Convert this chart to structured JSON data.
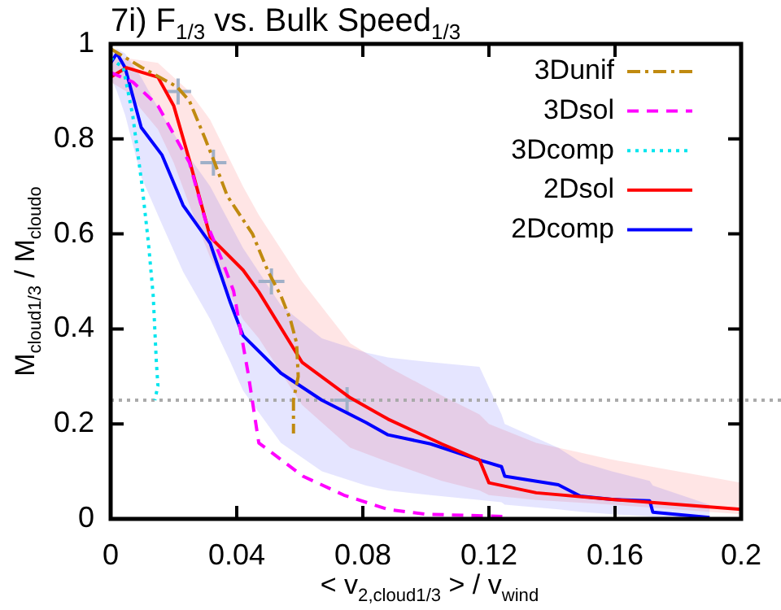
{
  "chart_data": {
    "type": "line",
    "title": "7i) F$_{1/3}$ vs. Bulk Speed$_{1/3}$",
    "xlabel": "< v$_{2,cloud1/3}$ > / v$_{wind}$",
    "ylabel": "M$_{cloud1/3}$ / M$_{cloudo}$",
    "xlim": [
      0,
      0.2
    ],
    "xticks": [
      0,
      0.04,
      0.08,
      0.12,
      0.16,
      0.2
    ],
    "ylim": [
      0,
      1
    ],
    "yticks": [
      0,
      0.2,
      0.4,
      0.6,
      0.8,
      1
    ],
    "grid": false,
    "legend": "top right",
    "marker": "none",
    "ref_lines": [
      {
        "axis": "y",
        "value": 0.25,
        "color": "#aaaaaa",
        "line_style": "dotted"
      }
    ],
    "series": [
      {
        "name": "3Dunif",
        "color": "#c08a10",
        "line_style": "dashdot",
        "x": [
          0,
          0.01,
          0.021,
          0.025,
          0.03,
          0.033,
          0.037,
          0.045,
          0.05,
          0.054,
          0.057,
          0.059,
          0.0595,
          0.058,
          0.058
        ],
        "values": [
          0.99,
          0.95,
          0.91,
          0.88,
          0.8,
          0.75,
          0.68,
          0.6,
          0.52,
          0.47,
          0.42,
          0.37,
          0.3,
          0.25,
          0.18
        ]
      },
      {
        "name": "3Dsol",
        "color": "#ff00ff",
        "line_style": "dashed",
        "x": [
          0,
          0.007,
          0.015,
          0.025,
          0.03,
          0.035,
          0.039,
          0.0436,
          0.047,
          0.061,
          0.074,
          0.088,
          0.1,
          0.125
        ],
        "values": [
          0.94,
          0.92,
          0.87,
          0.75,
          0.63,
          0.55,
          0.48,
          0.307,
          0.16,
          0.09,
          0.05,
          0.02,
          0.01,
          0.005
        ]
      },
      {
        "name": "3Dcomp",
        "color": "#00e5ee",
        "line_style": "dotted",
        "x": [
          0,
          0.004,
          0.007,
          0.01,
          0.012,
          0.0135,
          0.014,
          0.0145,
          0.015,
          0.014
        ],
        "values": [
          0.97,
          0.95,
          0.85,
          0.7,
          0.58,
          0.47,
          0.4,
          0.33,
          0.28,
          0.25
        ]
      },
      {
        "name": "2Dsol",
        "color": "#ff0000",
        "line_style": "solid",
        "x": [
          0,
          0.005,
          0.015,
          0.02,
          0.025,
          0.0316,
          0.042,
          0.047,
          0.0607,
          0.076,
          0.088,
          0.105,
          0.117,
          0.12,
          0.135,
          0.159,
          0.2
        ],
        "values": [
          0.93,
          0.95,
          0.93,
          0.87,
          0.755,
          0.593,
          0.524,
          0.478,
          0.33,
          0.255,
          0.21,
          0.158,
          0.124,
          0.076,
          0.055,
          0.041,
          0.02
        ],
        "lower": [
          0.92,
          0.9,
          0.82,
          0.75,
          0.66,
          0.55,
          0.42,
          0.38,
          0.24,
          0.15,
          0.12,
          0.08,
          0.06,
          0.05,
          0.04,
          0.03,
          0.01
        ],
        "upper": [
          0.97,
          0.97,
          0.96,
          0.93,
          0.9,
          0.84,
          0.7,
          0.64,
          0.5,
          0.37,
          0.32,
          0.26,
          0.22,
          0.2,
          0.16,
          0.125,
          0.076
        ]
      },
      {
        "name": "2Dcomp",
        "color": "#0000ff",
        "line_style": "solid",
        "x": [
          0,
          0.002,
          0.0046,
          0.0097,
          0.0163,
          0.023,
          0.0316,
          0.038,
          0.042,
          0.054,
          0.067,
          0.081,
          0.088,
          0.1015,
          0.117,
          0.124,
          0.125,
          0.142,
          0.149,
          0.159,
          0.171,
          0.172,
          0.19
        ],
        "values": [
          0.96,
          0.98,
          0.95,
          0.824,
          0.766,
          0.66,
          0.58,
          0.455,
          0.386,
          0.307,
          0.25,
          0.203,
          0.177,
          0.158,
          0.124,
          0.11,
          0.09,
          0.072,
          0.048,
          0.041,
          0.038,
          0.014,
          0.003
        ],
        "lower": [
          0.93,
          0.9,
          0.85,
          0.72,
          0.62,
          0.52,
          0.42,
          0.33,
          0.27,
          0.16,
          0.1,
          0.07,
          0.06,
          0.05,
          0.04,
          0.035,
          0.03,
          0.02,
          0.015,
          0.01,
          0.005,
          0.003,
          0
        ],
        "upper": [
          0.98,
          0.99,
          0.98,
          0.93,
          0.85,
          0.78,
          0.7,
          0.62,
          0.57,
          0.45,
          0.38,
          0.35,
          0.34,
          0.33,
          0.32,
          0.22,
          0.2,
          0.15,
          0.12,
          0.1,
          0.08,
          0.07,
          0.03
        ]
      },
      {
        "type": "scatter",
        "color": "#a0b0c8",
        "marker": "cross",
        "x": [
          0.0214,
          0.0326,
          0.051,
          0.075
        ],
        "values": [
          0.9,
          0.75,
          0.5,
          0.25
        ]
      }
    ]
  }
}
